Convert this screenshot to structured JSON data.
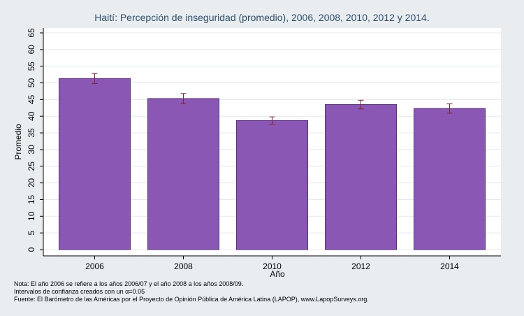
{
  "chart_data": {
    "type": "bar",
    "title": "Haití: Percepción de inseguridad (promedio), 2006, 2008, 2010, 2012 y 2014.",
    "xlabel": "Año",
    "ylabel": "Promedio",
    "categories": [
      "2006",
      "2008",
      "2010",
      "2012",
      "2014"
    ],
    "values": [
      51.3,
      45.3,
      38.7,
      43.5,
      42.3
    ],
    "ci_low": [
      49.8,
      43.8,
      37.6,
      42.2,
      40.9
    ],
    "ci_high": [
      52.8,
      46.8,
      39.8,
      44.8,
      43.7
    ],
    "ylim": [
      0,
      67
    ],
    "yticks": [
      0,
      5,
      10,
      15,
      20,
      25,
      30,
      35,
      40,
      45,
      50,
      55,
      60,
      65
    ],
    "grid": true,
    "colors": {
      "bar": "#8a58b4",
      "bar_edge": "#5c2f86",
      "errorbar": "#8b1f2a",
      "plot_bg": "#ffffff",
      "grid": "#e4e8ec",
      "outer_bg": "#e9edf0"
    }
  },
  "notes": {
    "line1": "Nota: El año 2006 se refiere a los años 2006/07 y el año 2008 a los años 2008/09.",
    "line2": "Intervalos de confianza creados con un α=0.05",
    "line3": "Fuente: El Barómetro de las Américas por el Proyecto de Opinión Pública de América Latina (LAPOP), www.LapopSurveys.org."
  }
}
